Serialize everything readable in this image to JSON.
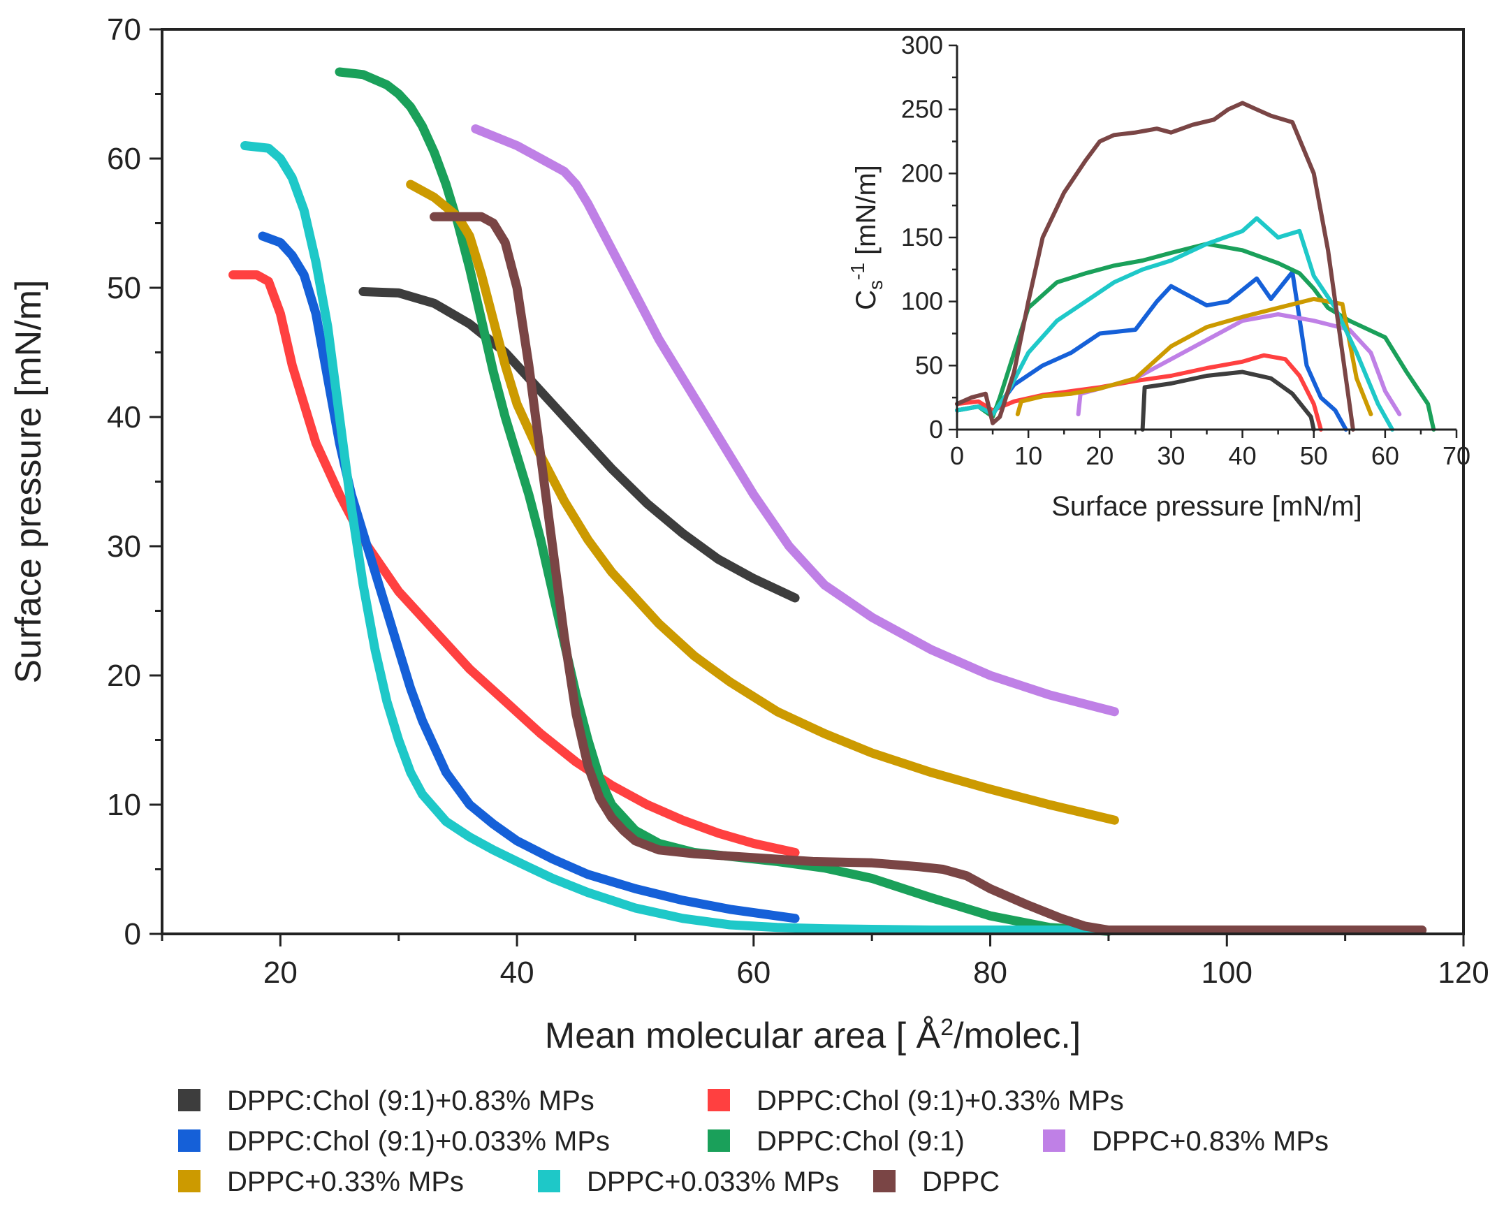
{
  "chart_data": [
    {
      "type": "line",
      "name": "main",
      "xlabel": "Mean molecular area [ Å²/molec.]",
      "xlabel_prefix": "Mean molecular area [ Å",
      "xlabel_sup": "2",
      "xlabel_suffix": "/molec.]",
      "ylabel": "Surface pressure [mN/m]",
      "xlim": [
        10,
        120
      ],
      "ylim": [
        0,
        70
      ],
      "x_ticks": [
        20,
        40,
        60,
        80,
        100,
        120
      ],
      "x_tick_labels": [
        "20",
        "40",
        "60",
        "80",
        "100",
        "120"
      ],
      "y_ticks": [
        0,
        10,
        20,
        30,
        40,
        50,
        60,
        70
      ],
      "y_tick_labels": [
        "0",
        "10",
        "20",
        "30",
        "40",
        "50",
        "60",
        "70"
      ],
      "series": [
        {
          "name": "DPPC:Chol (9:1)+0.83% MPs",
          "color": "#3d3d3d",
          "x": [
            27,
            30,
            33,
            36,
            39,
            42,
            45,
            48,
            51,
            54,
            57,
            60,
            63.5
          ],
          "y": [
            49.7,
            49.6,
            48.8,
            47.2,
            45,
            42,
            39,
            36,
            33.3,
            31,
            29,
            27.5,
            26
          ]
        },
        {
          "name": "DPPC:Chol (9:1)+0.33% MPs",
          "color": "#ff4040",
          "x": [
            16,
            18,
            19,
            20,
            21,
            22,
            23,
            25,
            27,
            30,
            33,
            36,
            39,
            42,
            45,
            48,
            51,
            54,
            57,
            60,
            63.5
          ],
          "y": [
            51,
            51,
            50.5,
            48,
            44,
            41,
            38,
            34,
            30.5,
            26.5,
            23.5,
            20.5,
            18,
            15.5,
            13.3,
            11.5,
            10,
            8.8,
            7.8,
            7,
            6.3
          ]
        },
        {
          "name": "DPPC:Chol (9:1)+0.033% MPs",
          "color": "#1560d8",
          "x": [
            18.5,
            20,
            21,
            22,
            23,
            24,
            25,
            26,
            27,
            28,
            29,
            30,
            31,
            32,
            34,
            36,
            38,
            40,
            43,
            46,
            50,
            54,
            58,
            63.5
          ],
          "y": [
            54,
            53.5,
            52.5,
            51,
            48,
            43,
            38,
            34,
            31,
            28,
            25,
            22,
            19,
            16.5,
            12.5,
            10,
            8.5,
            7.2,
            5.8,
            4.6,
            3.5,
            2.6,
            1.9,
            1.2
          ]
        },
        {
          "name": "DPPC:Chol (9:1)",
          "color": "#1aa05a",
          "x": [
            25,
            27,
            29,
            30,
            31,
            32,
            33,
            34,
            35,
            36,
            37,
            38,
            39,
            40,
            41,
            42,
            43,
            44,
            45,
            46,
            47,
            48,
            50,
            52,
            55,
            58,
            62,
            66,
            70,
            75,
            80,
            85,
            90
          ],
          "y": [
            66.7,
            66.5,
            65.7,
            65,
            64,
            62.5,
            60.5,
            58,
            55,
            51.5,
            47.5,
            43.5,
            40,
            37,
            34,
            30.5,
            26.5,
            22.5,
            18.5,
            15,
            12,
            10,
            8,
            7,
            6.3,
            6,
            5.6,
            5.1,
            4.3,
            2.8,
            1.4,
            0.5,
            0.2
          ]
        },
        {
          "name": "DPPC+0.83% MPs",
          "color": "#bf80e6",
          "x": [
            36.5,
            40,
            42,
            44,
            45,
            46,
            48,
            50,
            52,
            54,
            56,
            58,
            60,
            63,
            66,
            70,
            75,
            80,
            85,
            90.5
          ],
          "y": [
            62.3,
            61,
            60,
            59,
            58,
            56.5,
            53,
            49.5,
            46,
            43,
            40,
            37,
            34,
            30,
            27,
            24.5,
            22,
            20,
            18.5,
            17.2
          ]
        },
        {
          "name": "DPPC+0.33% MPs",
          "color": "#cc9a00",
          "x": [
            31,
            33,
            35,
            36,
            37,
            38,
            39,
            40,
            42,
            44,
            46,
            48,
            50,
            52,
            55,
            58,
            62,
            66,
            70,
            75,
            80,
            85,
            90.5
          ],
          "y": [
            58,
            57,
            55.5,
            54,
            51,
            47.5,
            44,
            41,
            37,
            33.5,
            30.5,
            28,
            26,
            24,
            21.5,
            19.5,
            17.2,
            15.5,
            14,
            12.5,
            11.2,
            10,
            8.8
          ]
        },
        {
          "name": "DPPC+0.033% MPs",
          "color": "#1ec8c8",
          "x": [
            17,
            19,
            20,
            21,
            22,
            23,
            24,
            25,
            26,
            27,
            28,
            29,
            30,
            31,
            32,
            34,
            36,
            38,
            40,
            43,
            46,
            50,
            54,
            58,
            62,
            66,
            70,
            75,
            80,
            85,
            90
          ],
          "y": [
            61,
            60.8,
            60,
            58.5,
            56,
            52,
            47,
            40,
            33,
            27,
            22,
            18,
            15,
            12.5,
            10.8,
            8.7,
            7.5,
            6.5,
            5.6,
            4.3,
            3.2,
            2,
            1.2,
            0.7,
            0.5,
            0.4,
            0.35,
            0.3,
            0.3,
            0.3,
            0.3
          ]
        },
        {
          "name": "DPPC",
          "color": "#7a4545",
          "x": [
            33,
            35,
            37,
            38,
            39,
            40,
            41,
            42,
            43,
            44,
            45,
            46,
            47,
            48,
            49,
            50,
            52,
            55,
            60,
            65,
            70,
            74,
            76,
            78,
            80,
            83,
            86,
            88,
            90,
            95,
            100,
            105,
            110,
            116.5
          ],
          "y": [
            55.5,
            55.5,
            55.5,
            55,
            53.5,
            50,
            44,
            37,
            30,
            23,
            17,
            13,
            10.5,
            9,
            8,
            7.2,
            6.5,
            6.2,
            5.9,
            5.6,
            5.5,
            5.2,
            5,
            4.5,
            3.5,
            2.3,
            1.2,
            0.6,
            0.3,
            0.3,
            0.3,
            0.3,
            0.3,
            0.3
          ]
        }
      ]
    },
    {
      "type": "line",
      "name": "inset",
      "xlabel": "Surface pressure [mN/m]",
      "ylabel": "Cs-1 [mN/m]",
      "ylabel_main": "C",
      "ylabel_sub": "s",
      "ylabel_sup": "-1",
      "ylabel_suffix": " [mN/m]",
      "xlim": [
        0,
        70
      ],
      "ylim": [
        0,
        300
      ],
      "x_ticks": [
        0,
        10,
        20,
        30,
        40,
        50,
        60,
        70
      ],
      "x_tick_labels": [
        "0",
        "10",
        "20",
        "30",
        "40",
        "50",
        "60",
        "70"
      ],
      "y_ticks": [
        0,
        50,
        100,
        150,
        200,
        250,
        300
      ],
      "y_tick_labels": [
        "0",
        "50",
        "100",
        "150",
        "200",
        "250",
        "300"
      ],
      "series": [
        {
          "name": "DPPC:Chol (9:1)+0.83% MPs",
          "color": "#3d3d3d",
          "x": [
            26,
            26.3,
            30,
            35,
            40,
            44,
            47,
            49.6,
            50
          ],
          "y": [
            0,
            33,
            36,
            42,
            45,
            40,
            28,
            10,
            0
          ]
        },
        {
          "name": "DPPC:Chol (9:1)+0.33% MPs",
          "color": "#ff4040",
          "x": [
            0,
            3,
            5,
            8,
            12,
            16,
            20,
            25,
            30,
            35,
            40,
            43,
            46,
            48,
            50,
            51
          ],
          "y": [
            20,
            22,
            15,
            22,
            27,
            30,
            33,
            38,
            42,
            48,
            53,
            58,
            55,
            42,
            20,
            0
          ]
        },
        {
          "name": "DPPC:Chol (9:1)+0.033% MPs",
          "color": "#1560d8",
          "x": [
            0,
            3,
            5,
            8,
            12,
            16,
            20,
            25,
            28,
            30,
            35,
            38,
            42,
            44,
            47,
            49,
            51,
            53,
            54.5
          ],
          "y": [
            15,
            18,
            12,
            35,
            50,
            60,
            75,
            78,
            100,
            112,
            97,
            100,
            118,
            102,
            123,
            50,
            25,
            15,
            0
          ]
        },
        {
          "name": "DPPC:Chol (9:1)",
          "color": "#1aa05a",
          "x": [
            0,
            3,
            5,
            6,
            8,
            10,
            14,
            18,
            22,
            26,
            30,
            35,
            40,
            45,
            48,
            50,
            52,
            55,
            60,
            63,
            66,
            66.8
          ],
          "y": [
            15,
            18,
            10,
            25,
            60,
            95,
            115,
            122,
            128,
            132,
            138,
            145,
            140,
            130,
            122,
            110,
            95,
            85,
            72,
            45,
            20,
            0
          ]
        },
        {
          "name": "DPPC+0.83% MPs",
          "color": "#bf80e6",
          "x": [
            17,
            17.3,
            20,
            25,
            30,
            35,
            40,
            45,
            50,
            55,
            58,
            60,
            62
          ],
          "y": [
            12,
            28,
            32,
            40,
            55,
            70,
            85,
            90,
            85,
            78,
            60,
            30,
            12
          ]
        },
        {
          "name": "DPPC+0.33% MPs",
          "color": "#cc9a00",
          "x": [
            8.5,
            9,
            12,
            16,
            20,
            25,
            30,
            35,
            40,
            45,
            50,
            54,
            56,
            58
          ],
          "y": [
            12,
            22,
            26,
            28,
            32,
            40,
            65,
            80,
            88,
            95,
            102,
            98,
            40,
            12
          ]
        },
        {
          "name": "DPPC+0.033% MPs",
          "color": "#1ec8c8",
          "x": [
            0,
            3,
            5,
            7,
            10,
            14,
            18,
            22,
            26,
            30,
            35,
            40,
            42,
            45,
            48,
            50,
            53,
            56,
            59,
            61
          ],
          "y": [
            15,
            18,
            12,
            28,
            60,
            85,
            100,
            115,
            125,
            132,
            145,
            155,
            165,
            150,
            155,
            120,
            95,
            60,
            20,
            0
          ]
        },
        {
          "name": "DPPC",
          "color": "#7a4545",
          "x": [
            0,
            2,
            4,
            5,
            6,
            8,
            10,
            12,
            15,
            18,
            20,
            22,
            25,
            28,
            30,
            33,
            36,
            38,
            40,
            42,
            44,
            47,
            50,
            52,
            54,
            55.5
          ],
          "y": [
            20,
            25,
            28,
            5,
            10,
            45,
            100,
            150,
            185,
            210,
            225,
            230,
            232,
            235,
            232,
            238,
            242,
            250,
            255,
            250,
            245,
            240,
            200,
            140,
            60,
            0
          ]
        }
      ]
    }
  ],
  "legend": {
    "items": [
      {
        "label": "DPPC:Chol (9:1)+0.83% MPs",
        "color": "#3d3d3d"
      },
      {
        "label": "DPPC:Chol (9:1)+0.33% MPs",
        "color": "#ff4040"
      },
      {
        "label": "DPPC:Chol (9:1)+0.033% MPs",
        "color": "#1560d8"
      },
      {
        "label": "DPPC:Chol (9:1)",
        "color": "#1aa05a"
      },
      {
        "label": "DPPC+0.83% MPs",
        "color": "#bf80e6"
      },
      {
        "label": "DPPC+0.33% MPs",
        "color": "#cc9a00"
      },
      {
        "label": "DPPC+0.033% MPs",
        "color": "#1ec8c8"
      },
      {
        "label": "DPPC",
        "color": "#7a4545"
      }
    ]
  }
}
